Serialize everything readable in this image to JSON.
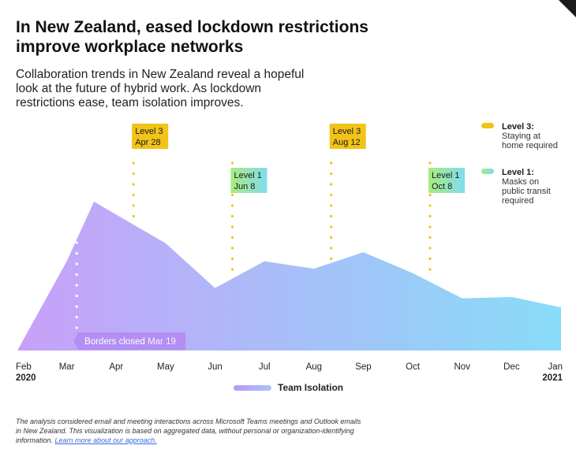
{
  "header": {
    "title": "In New Zealand, eased lockdown restrictions improve workplace networks",
    "subtitle": "Collaboration trends in New Zealand reveal a hopeful look at the future of hybrid work. As lockdown restrictions ease, team isolation improves."
  },
  "legend_series": "Team Isolation",
  "level_legend": [
    {
      "label": "Level 3:",
      "desc": [
        "Staying at",
        "home required"
      ],
      "color": "#f2c318"
    },
    {
      "label": "Level 1:",
      "desc": [
        "Masks on",
        "public transit",
        "required"
      ],
      "color": "#8fe27a"
    }
  ],
  "footnote": {
    "text": "The analysis considered email and meeting interactions across Microsoft Teams meetings and Outlook emails in New Zealand. This visualization is based on aggregated data, without personal or organization-identifying information.",
    "link": "Learn more about our approach."
  },
  "colors": {
    "area_start": "#c8a0f8",
    "area_end": "#88dcf8",
    "level3": "#f2c318",
    "level1_start": "#a8ec7c",
    "level1_end": "#82dcf0",
    "borders_tag": "#b48ef2"
  },
  "chart_data": {
    "type": "area",
    "x": [
      "Feb 2020",
      "Mar",
      "Apr",
      "May",
      "Jun",
      "Jul",
      "Aug",
      "Sep",
      "Oct",
      "Nov",
      "Dec",
      "Jan 2021"
    ],
    "x_tick_labels": [
      "Feb",
      "Mar",
      "Apr",
      "May",
      "Jun",
      "Jul",
      "Aug",
      "Sep",
      "Oct",
      "Nov",
      "Dec",
      "Jan"
    ],
    "x_year_labels": {
      "start": "2020",
      "end": "2021"
    },
    "series": [
      {
        "name": "Team Isolation",
        "points": [
          {
            "x": 0.0,
            "y": 0
          },
          {
            "x": 1.0,
            "y": 60
          },
          {
            "x": 1.55,
            "y": 100
          },
          {
            "x": 3.0,
            "y": 72
          },
          {
            "x": 4.0,
            "y": 42
          },
          {
            "x": 5.0,
            "y": 60
          },
          {
            "x": 6.0,
            "y": 55
          },
          {
            "x": 7.0,
            "y": 66
          },
          {
            "x": 8.0,
            "y": 52
          },
          {
            "x": 9.0,
            "y": 35
          },
          {
            "x": 10.0,
            "y": 36
          },
          {
            "x": 11.0,
            "y": 29
          }
        ]
      }
    ],
    "ylim": [
      0,
      100
    ],
    "y_axis_visible": false,
    "grid": false,
    "annotations": [
      {
        "label": "Level 3",
        "date": "Apr 28",
        "x": 2.35,
        "level": 3
      },
      {
        "label": "Level 1",
        "date": "Jun 8",
        "x": 4.35,
        "level": 1
      },
      {
        "label": "Level 3",
        "date": "Aug 12",
        "x": 6.35,
        "level": 3
      },
      {
        "label": "Level 1",
        "date": "Oct 8",
        "x": 8.35,
        "level": 1
      },
      {
        "label": "Borders closed",
        "date": "Mar 19",
        "x": 1.2,
        "level": 0
      }
    ]
  }
}
